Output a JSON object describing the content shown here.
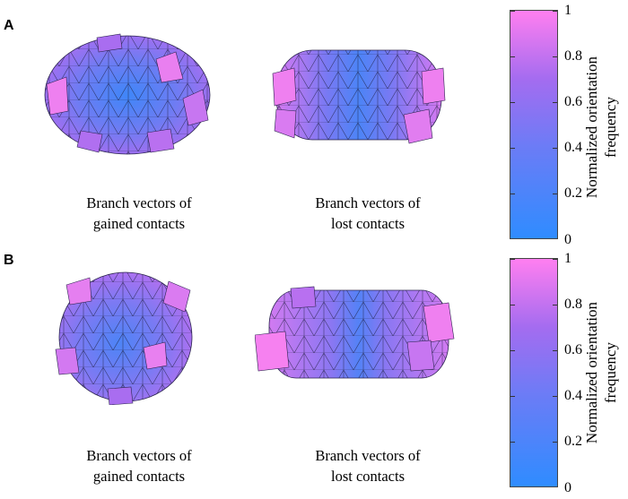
{
  "panels": [
    {
      "letter": "A",
      "captions": [
        {
          "line1": "Branch vectors of",
          "line2": "gained contacts"
        },
        {
          "line1": "Branch vectors of",
          "line2": "lost contacts"
        }
      ],
      "colorbar": {
        "title_line1": "Normalized orientation",
        "title_line2": "frequency",
        "ticks": [
          "1",
          "0.8",
          "0.6",
          "0.4",
          "0.2",
          "0"
        ],
        "colors": {
          "low": "#2f8cff",
          "mid": "#8a72f2",
          "high": "#ff7ff0"
        }
      }
    },
    {
      "letter": "B",
      "captions": [
        {
          "line1": "Branch vectors of",
          "line2": "gained contacts"
        },
        {
          "line1": "Branch vectors of",
          "line2": "lost contacts"
        }
      ],
      "colorbar": {
        "title_line1": "Normalized orientation",
        "title_line2": "frequency",
        "ticks": [
          "1",
          "0.8",
          "0.6",
          "0.4",
          "0.2",
          "0"
        ],
        "colors": {
          "low": "#2f8cff",
          "mid": "#8a72f2",
          "high": "#ff7ff0"
        }
      }
    }
  ]
}
